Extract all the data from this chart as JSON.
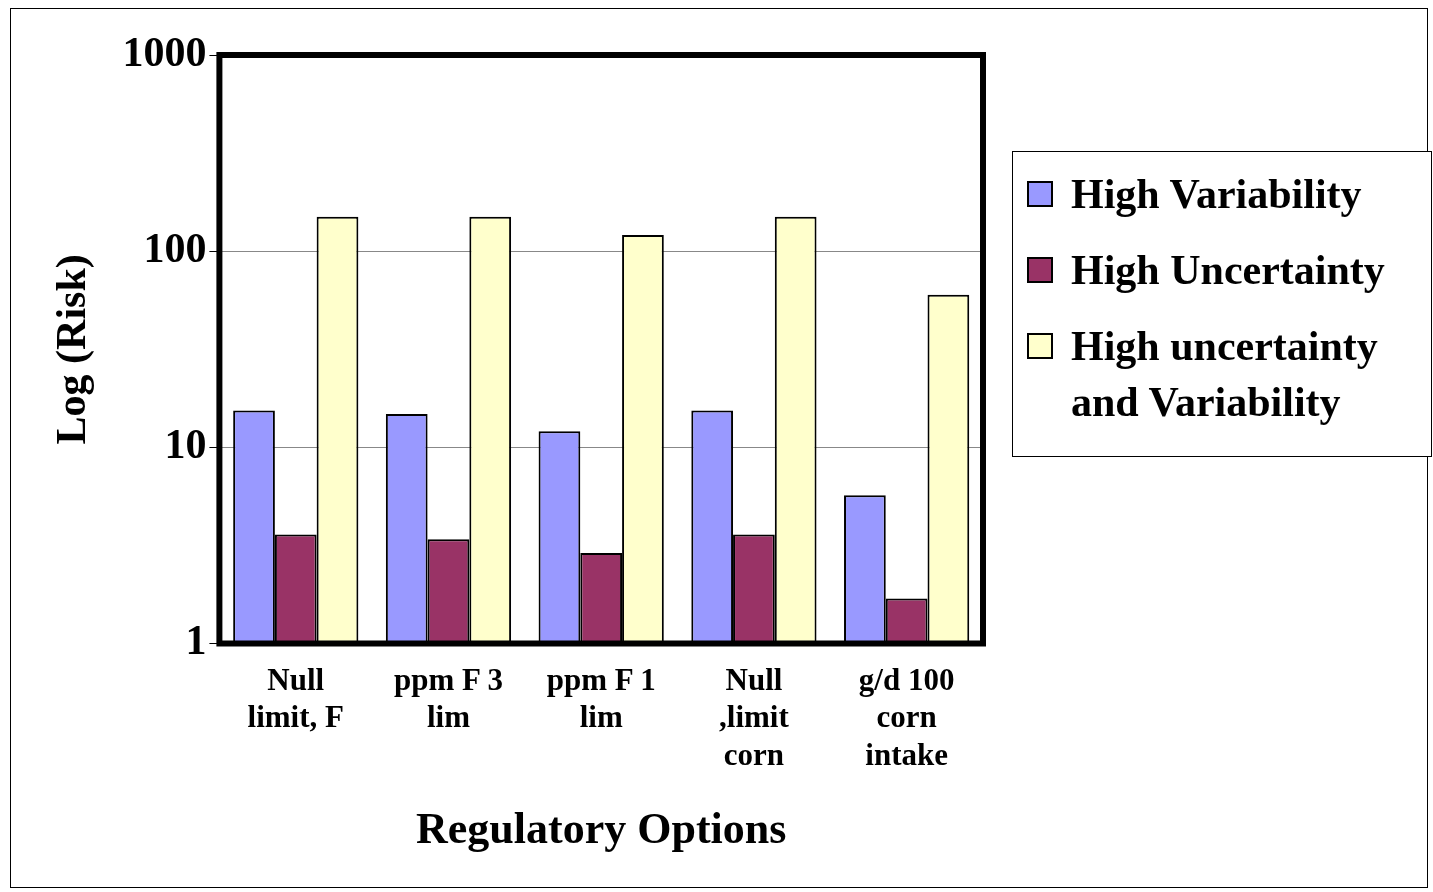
{
  "chart_data": {
    "type": "bar",
    "xlabel": "Regulatory Options",
    "ylabel": "Log (Risk)",
    "categories": [
      "Null\nlimit, F",
      "ppm F 3\nlim",
      "ppm F 1\nlim",
      "Null\n,limit\ncorn",
      "g/d 100\ncorn\nintake"
    ],
    "series": [
      {
        "name": "High Variability",
        "color": "#9999ff",
        "values": [
          15.4,
          14.8,
          12.1,
          15.4,
          5.7
        ]
      },
      {
        "name": "High Uncertainty",
        "color": "#993366",
        "values": [
          3.6,
          3.4,
          2.9,
          3.6,
          1.7
        ]
      },
      {
        "name": "High uncertainty and Variability",
        "color": "#ffffcc",
        "values": [
          150,
          150,
          121,
          150,
          60
        ]
      }
    ],
    "log": true,
    "ylim": [
      1,
      1000
    ],
    "yticks": [
      1,
      10,
      100,
      1000
    ],
    "grid": "y",
    "legend": "right"
  }
}
